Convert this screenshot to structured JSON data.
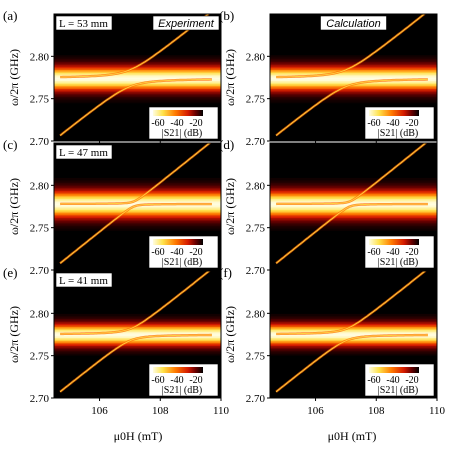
{
  "chart_data": {
    "type": "heatmap",
    "xlabel": "μ0H (mT)",
    "ylabel": "ω/2π (GHz)",
    "xlim": [
      104.5,
      110
    ],
    "ylim": [
      2.7,
      2.85
    ],
    "x_ticks": [
      "106",
      "108",
      "110"
    ],
    "y_ticks": [
      "2.70",
      "2.75",
      "2.80"
    ],
    "colorbar": {
      "label": "|S21| (dB)",
      "ticks": [
        "-60",
        "-40",
        "-20"
      ]
    },
    "colormap": [
      "#000000",
      "#6a0000",
      "#d41a00",
      "#ff7a00",
      "#ffe24a",
      "#fffde0"
    ],
    "panels": [
      {
        "letter": "(a)",
        "header": "L = 53 mm",
        "tag": "Experiment",
        "cavity_GHz": 2.774,
        "band_width": 0.018,
        "coupling_GHz": 0.01,
        "line_x": [
          104.7,
          109.7
        ],
        "line_f": [
          2.708,
          2.852
        ]
      },
      {
        "letter": "(b)",
        "header": "",
        "tag": "Calculation",
        "cavity_GHz": 2.774,
        "band_width": 0.018,
        "coupling_GHz": 0.01,
        "line_x": [
          104.7,
          109.7
        ],
        "line_f": [
          2.708,
          2.852
        ]
      },
      {
        "letter": "(c)",
        "header": "L = 47 mm",
        "tag": "",
        "cavity_GHz": 2.778,
        "band_width": 0.02,
        "coupling_GHz": 0.003,
        "line_x": [
          104.7,
          109.7
        ],
        "line_f": [
          2.708,
          2.852
        ]
      },
      {
        "letter": "(d)",
        "header": "",
        "tag": "",
        "cavity_GHz": 2.778,
        "band_width": 0.02,
        "coupling_GHz": 0.003,
        "line_x": [
          104.7,
          109.7
        ],
        "line_f": [
          2.708,
          2.852
        ]
      },
      {
        "letter": "(e)",
        "header": "L = 41 mm",
        "tag": "",
        "cavity_GHz": 2.775,
        "band_width": 0.016,
        "coupling_GHz": 0.007,
        "line_x": [
          104.7,
          109.7
        ],
        "line_f": [
          2.708,
          2.852
        ]
      },
      {
        "letter": "(f)",
        "header": "",
        "tag": "",
        "cavity_GHz": 2.775,
        "band_width": 0.016,
        "coupling_GHz": 0.007,
        "line_x": [
          104.7,
          109.7
        ],
        "line_f": [
          2.708,
          2.852
        ]
      }
    ]
  }
}
